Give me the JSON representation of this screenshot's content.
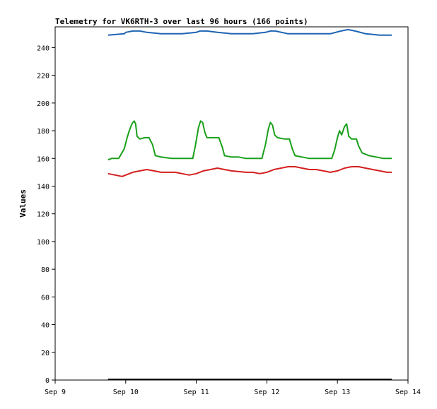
{
  "chart_data": {
    "type": "line",
    "title": "Telemetry for VK6RTH-3 over last 96 hours (166 points)",
    "xlabel": "",
    "ylabel": "Values",
    "x_ticks": [
      "Sep 9",
      "Sep 10",
      "Sep 11",
      "Sep 12",
      "Sep 13",
      "Sep 14"
    ],
    "x_range_days": [
      9,
      14
    ],
    "ylim": [
      0,
      255
    ],
    "y_ticks": [
      0,
      20,
      40,
      60,
      80,
      100,
      120,
      140,
      160,
      180,
      200,
      220,
      240
    ],
    "grid": false,
    "legend": "none",
    "series": [
      {
        "color": "#1e64b4",
        "points": [
          [
            9.75,
            249
          ],
          [
            9.98,
            250
          ],
          [
            10.0,
            251
          ],
          [
            10.1,
            252
          ],
          [
            10.2,
            252
          ],
          [
            10.3,
            251
          ],
          [
            10.5,
            250
          ],
          [
            10.8,
            250
          ],
          [
            11.0,
            251
          ],
          [
            11.05,
            252
          ],
          [
            11.15,
            252
          ],
          [
            11.3,
            251
          ],
          [
            11.5,
            250
          ],
          [
            11.8,
            250
          ],
          [
            11.98,
            251
          ],
          [
            12.05,
            252
          ],
          [
            12.12,
            252
          ],
          [
            12.3,
            250
          ],
          [
            12.5,
            250
          ],
          [
            12.9,
            250
          ],
          [
            13.05,
            252
          ],
          [
            13.15,
            253
          ],
          [
            13.25,
            252
          ],
          [
            13.4,
            250
          ],
          [
            13.6,
            249
          ],
          [
            13.77,
            249
          ]
        ]
      },
      {
        "color": "#1aa01a",
        "points": [
          [
            9.75,
            159
          ],
          [
            9.8,
            160
          ],
          [
            9.9,
            160
          ],
          [
            9.98,
            167
          ],
          [
            10.02,
            175
          ],
          [
            10.05,
            180
          ],
          [
            10.08,
            184
          ],
          [
            10.1,
            186
          ],
          [
            10.12,
            187
          ],
          [
            10.14,
            185
          ],
          [
            10.16,
            176
          ],
          [
            10.2,
            174
          ],
          [
            10.27,
            175
          ],
          [
            10.33,
            175
          ],
          [
            10.38,
            170
          ],
          [
            10.42,
            162
          ],
          [
            10.5,
            161
          ],
          [
            10.65,
            160
          ],
          [
            10.8,
            160
          ],
          [
            10.95,
            160
          ],
          [
            10.99,
            170
          ],
          [
            11.03,
            182
          ],
          [
            11.06,
            187
          ],
          [
            11.09,
            186
          ],
          [
            11.12,
            179
          ],
          [
            11.15,
            175
          ],
          [
            11.25,
            175
          ],
          [
            11.32,
            175
          ],
          [
            11.37,
            168
          ],
          [
            11.4,
            162
          ],
          [
            11.5,
            161
          ],
          [
            11.6,
            161
          ],
          [
            11.7,
            160
          ],
          [
            11.8,
            160
          ],
          [
            11.93,
            160
          ],
          [
            11.98,
            170
          ],
          [
            12.02,
            181
          ],
          [
            12.05,
            186
          ],
          [
            12.08,
            184
          ],
          [
            12.11,
            177
          ],
          [
            12.15,
            175
          ],
          [
            12.25,
            174
          ],
          [
            12.32,
            174
          ],
          [
            12.36,
            167
          ],
          [
            12.4,
            162
          ],
          [
            12.5,
            161
          ],
          [
            12.6,
            160
          ],
          [
            12.7,
            160
          ],
          [
            12.82,
            160
          ],
          [
            12.92,
            160
          ],
          [
            12.96,
            166
          ],
          [
            13.0,
            175
          ],
          [
            13.03,
            180
          ],
          [
            13.06,
            177
          ],
          [
            13.1,
            183
          ],
          [
            13.13,
            185
          ],
          [
            13.16,
            176
          ],
          [
            13.2,
            174
          ],
          [
            13.27,
            174
          ],
          [
            13.3,
            169
          ],
          [
            13.35,
            164
          ],
          [
            13.45,
            162
          ],
          [
            13.55,
            161
          ],
          [
            13.65,
            160
          ],
          [
            13.72,
            160
          ],
          [
            13.77,
            160
          ]
        ]
      },
      {
        "color": "#d42020",
        "points": [
          [
            9.75,
            149
          ],
          [
            9.85,
            148
          ],
          [
            9.95,
            147
          ],
          [
            10.0,
            148
          ],
          [
            10.1,
            150
          ],
          [
            10.2,
            151
          ],
          [
            10.3,
            152
          ],
          [
            10.4,
            151
          ],
          [
            10.5,
            150
          ],
          [
            10.7,
            150
          ],
          [
            10.8,
            149
          ],
          [
            10.9,
            148
          ],
          [
            11.0,
            149
          ],
          [
            11.1,
            151
          ],
          [
            11.2,
            152
          ],
          [
            11.3,
            153
          ],
          [
            11.4,
            152
          ],
          [
            11.5,
            151
          ],
          [
            11.7,
            150
          ],
          [
            11.8,
            150
          ],
          [
            11.9,
            149
          ],
          [
            12.0,
            150
          ],
          [
            12.1,
            152
          ],
          [
            12.2,
            153
          ],
          [
            12.3,
            154
          ],
          [
            12.4,
            154
          ],
          [
            12.5,
            153
          ],
          [
            12.6,
            152
          ],
          [
            12.7,
            152
          ],
          [
            12.8,
            151
          ],
          [
            12.9,
            150
          ],
          [
            13.0,
            151
          ],
          [
            13.1,
            153
          ],
          [
            13.2,
            154
          ],
          [
            13.3,
            154
          ],
          [
            13.4,
            153
          ],
          [
            13.5,
            152
          ],
          [
            13.6,
            151
          ],
          [
            13.7,
            150
          ],
          [
            13.77,
            150
          ]
        ]
      },
      {
        "color": "#000000",
        "points": [
          [
            9.75,
            0.5
          ],
          [
            13.77,
            0.5
          ]
        ]
      }
    ]
  }
}
